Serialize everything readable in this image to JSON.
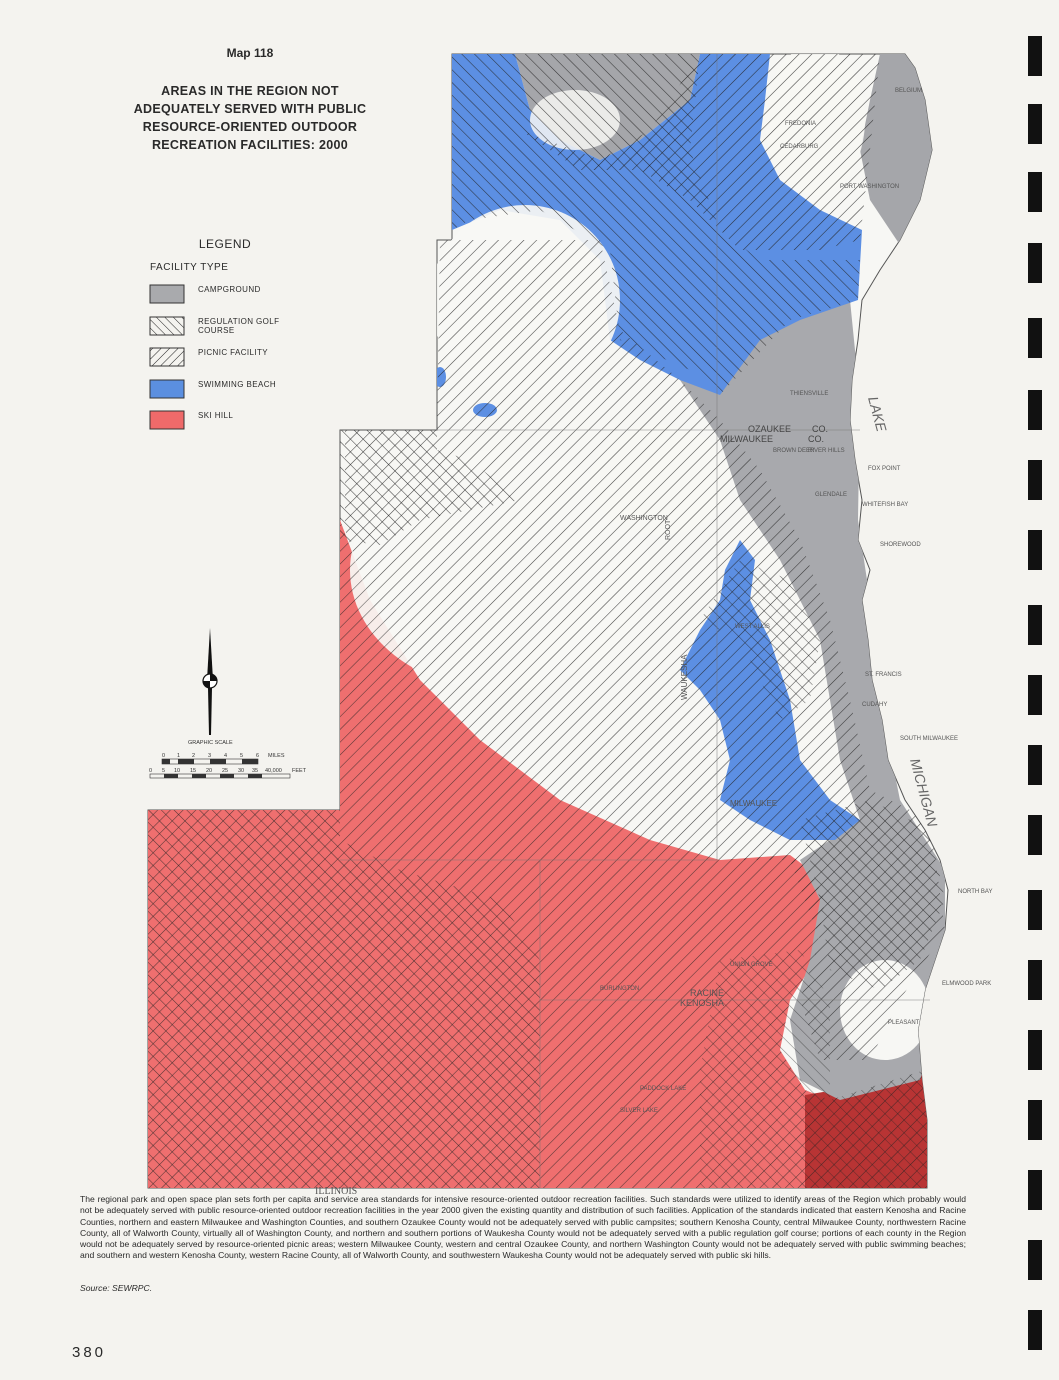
{
  "map_label": "Map 118",
  "title_lines": [
    "AREAS IN THE REGION NOT",
    "ADEQUATELY SERVED WITH PUBLIC",
    "RESOURCE-ORIENTED OUTDOOR",
    "RECREATION FACILITIES: 2000"
  ],
  "legend": {
    "title": "LEGEND",
    "subtitle": "FACILITY TYPE",
    "items": [
      {
        "label": "CAMPGROUND",
        "pattern": "campground",
        "color": "#a9aaad"
      },
      {
        "label": "REGULATION GOLF COURSE",
        "pattern": "golf",
        "color": "#333333"
      },
      {
        "label": "PICNIC FACILITY",
        "pattern": "picnic",
        "color": "#333333"
      },
      {
        "label": "SWIMMING BEACH",
        "pattern": "swimming",
        "color": "#5b8fe0"
      },
      {
        "label": "SKI HILL",
        "pattern": "ski",
        "color": "#ef6a6a"
      }
    ]
  },
  "scale": {
    "title": "GRAPHIC SCALE",
    "miles_ticks": [
      "0",
      "1",
      "2",
      "3",
      "4",
      "5",
      "6"
    ],
    "miles_unit": "MILES",
    "feet_ticks": [
      "0",
      "5",
      "10",
      "15",
      "20",
      "25",
      "30",
      "35",
      "40,000"
    ],
    "feet_unit": "FEET"
  },
  "place_labels": {
    "belgium": "BELGIUM",
    "fredonia": "FREDONIA",
    "cedarburg": "CEDARBURG",
    "port_washington": "PORT WASHINGTON",
    "thiensville": "THIENSVILLE",
    "ozaukee": "OZAUKEE",
    "milwaukee_county": "MILWAUKEE",
    "co": "CO.",
    "brown_deer": "BROWN DEER",
    "river_hills": "RIVER HILLS",
    "fox_point": "FOX POINT",
    "whitefish_bay": "WHITEFISH BAY",
    "shorewood": "SHOREWOOD",
    "glendale": "GLENDALE",
    "west_allis": "WEST ALLIS",
    "cudahy": "CUDAHY",
    "south_milwaukee": "SOUTH MILWAUKEE",
    "st_francis": "ST. FRANCIS",
    "milwaukee_city": "MILWAUKEE",
    "lake": "LAKE",
    "michigan": "MICHIGAN",
    "north_bay": "NORTH BAY",
    "elmwood_park": "ELMWOOD PARK",
    "racine": "RACINE",
    "kenosha": "KENOSHA",
    "union_grove": "UNION GROVE",
    "burlington": "BURLINGTON",
    "paddock_lake": "PADDOCK LAKE",
    "silver_lake": "SILVER LAKE",
    "pleasant_prairie": "PLEASANT",
    "illinois": "ILLINOIS",
    "waukesha": "WAUKESHA",
    "washington": "WASHINGTON",
    "root": "ROOT"
  },
  "caption": "The regional park and open space plan sets forth per capita and service area standards for intensive resource-oriented outdoor recreation facilities. Such standards were utilized to identify areas of the Region which probably would not be adequately served with public resource-oriented outdoor recreation facilities in the year 2000 given the existing quantity and distribution of such facilities. Application of the standards indicated that eastern Kenosha and Racine Counties, northern and eastern Milwaukee and Washington Counties, and southern Ozaukee County would not be adequately served with public campsites; southern Kenosha County, central Milwaukee County, northwestern Racine County, all of Walworth County, virtually all of Washington County, and northern and southern portions of Waukesha County would not be adequately served with a public regulation golf course; portions of each county in the Region would not be adequately served by resource-oriented picnic areas; western Milwaukee County, western and central Ozaukee County, and northern Washington County would not be adequately served with public swimming beaches; and southern and western Kenosha County, western Racine County, all of Walworth County, and southwestern Waukesha County would not be adequately served with public ski hills.",
  "source": "Source:  SEWRPC.",
  "page_number": "380"
}
